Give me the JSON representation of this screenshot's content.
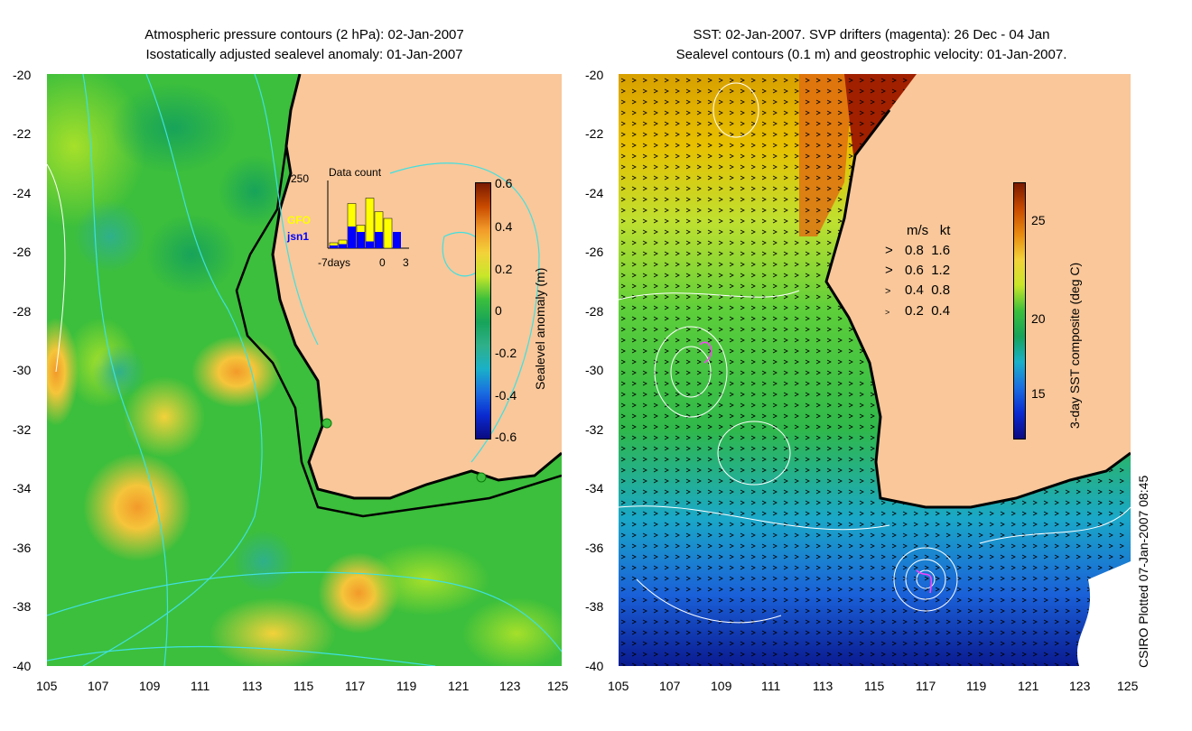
{
  "left_panel": {
    "title_line1": "Atmospheric pressure contours (2 hPa): 02-Jan-2007",
    "title_line2": "Isostatically adjusted sealevel anomaly: 01-Jan-2007",
    "y_ticks": [
      "-20",
      "-22",
      "-24",
      "-26",
      "-28",
      "-30",
      "-32",
      "-34",
      "-36",
      "-38",
      "-40"
    ],
    "x_ticks": [
      "105",
      "107",
      "109",
      "111",
      "113",
      "115",
      "117",
      "119",
      "121",
      "123",
      "125"
    ],
    "colorbar": {
      "label": "Sealevel anomaly (m)",
      "ticks": [
        "0.6",
        "0.4",
        "0.2",
        "0",
        "-0.2",
        "-0.4",
        "-0.6"
      ]
    },
    "inset": {
      "title": "Data count",
      "y_max_label": "250",
      "x_labels": [
        "-7days",
        "0",
        "3"
      ],
      "legend": [
        {
          "label": "GFO",
          "color": "#ffff00"
        },
        {
          "label": "jsn1",
          "color": "#0000ff"
        }
      ],
      "bars_yellow": [
        20,
        30,
        165,
        85,
        185,
        135,
        110,
        0
      ],
      "bars_blue": [
        10,
        15,
        80,
        60,
        25,
        60,
        0,
        60
      ]
    }
  },
  "right_panel": {
    "title_line1": "SST: 02-Jan-2007. SVP drifters (magenta): 26 Dec - 04 Jan",
    "title_line2": "Sealevel contours (0.1 m) and geostrophic velocity: 01-Jan-2007.",
    "y_ticks": [
      "-20",
      "-22",
      "-24",
      "-26",
      "-28",
      "-30",
      "-32",
      "-34",
      "-36",
      "-38",
      "-40"
    ],
    "x_ticks": [
      "105",
      "107",
      "109",
      "111",
      "113",
      "115",
      "117",
      "119",
      "121",
      "123",
      "125"
    ],
    "colorbar": {
      "label": "3-day SST composite (deg C)",
      "ticks": [
        "25",
        "20",
        "15"
      ]
    },
    "velocity_legend": {
      "header_ms": "m/s",
      "header_kt": "kt",
      "rows": [
        {
          "ms": "0.8",
          "kt": "1.6"
        },
        {
          "ms": "0.6",
          "kt": "1.2"
        },
        {
          "ms": "0.4",
          "kt": "0.8"
        },
        {
          "ms": "0.2",
          "kt": "0.4"
        }
      ]
    }
  },
  "credit": "CSIRO Plotted 07-Jan-2007 08:45"
}
